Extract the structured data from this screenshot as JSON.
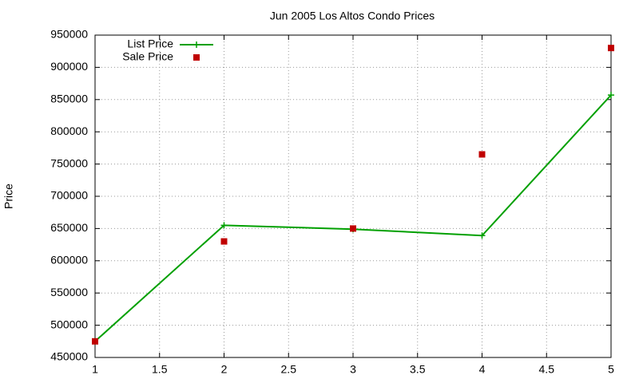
{
  "chart_data": {
    "type": "line",
    "title": "Jun 2005 Los Altos Condo Prices",
    "y_label": "Price",
    "x": [
      1,
      2,
      3,
      4,
      5
    ],
    "series": [
      {
        "name": "List Price",
        "color": "#00a000",
        "mode": "lines+points",
        "values": [
          475000,
          655000,
          649000,
          639000,
          857000
        ]
      },
      {
        "name": "Sale Price",
        "color": "#c00000",
        "mode": "points",
        "values": [
          475000,
          630000,
          650000,
          765000,
          930000
        ]
      }
    ],
    "xlim": [
      1,
      5
    ],
    "xticks": [
      1,
      1.5,
      2,
      2.5,
      3,
      3.5,
      4,
      4.5,
      5
    ],
    "ylim": [
      450000,
      950000
    ],
    "yticks": [
      450000,
      500000,
      550000,
      600000,
      650000,
      700000,
      750000,
      800000,
      850000,
      900000,
      950000
    ],
    "grid": true,
    "legend": "top-left"
  }
}
